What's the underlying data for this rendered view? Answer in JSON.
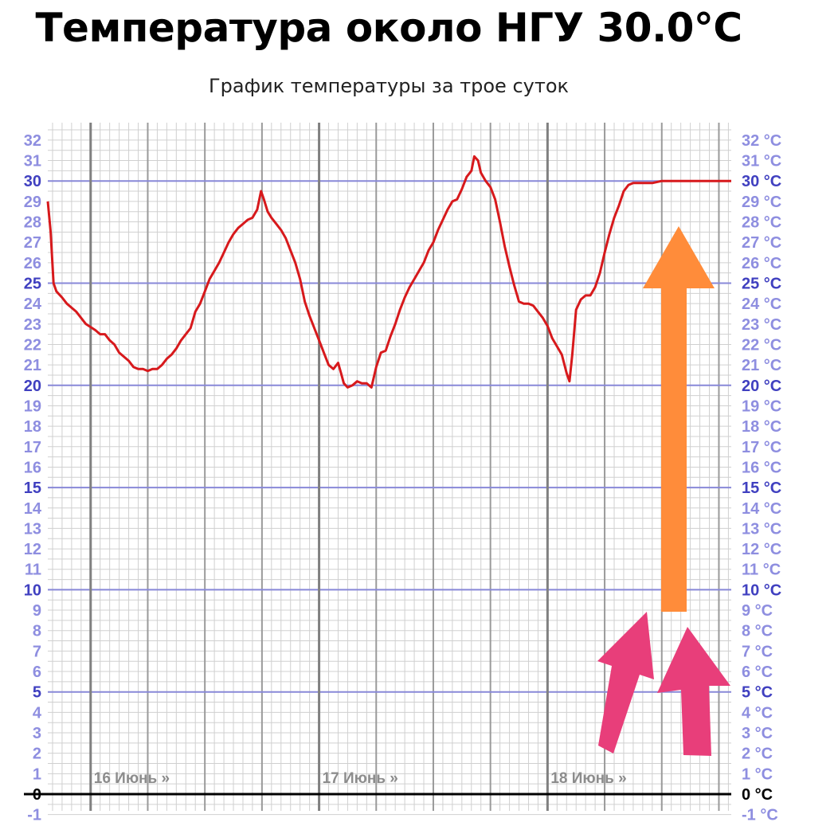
{
  "header": {
    "title": "Температура около НГУ 30.0°C",
    "subtitle": "График температуры за трое суток"
  },
  "colors": {
    "line": "#d7191c",
    "grid_minor": "#d0d0d0",
    "grid_blue": "#8888d8",
    "day_line": "#808080",
    "label_light": "#8e8ee0",
    "label_bold": "#4040c0",
    "zero": "#000000",
    "arrow_orange": "#ff8c3a",
    "arrow_pink": "#e83e7a"
  },
  "icons": [
    "orange-up-arrow-icon",
    "pink-arrow-icon"
  ],
  "chart_data": {
    "type": "line",
    "title": "",
    "xlabel": "",
    "ylabel": "",
    "ylim": [
      -1,
      32
    ],
    "y_ticks_left": [
      "-1",
      "0",
      "1",
      "2",
      "3",
      "4",
      "5",
      "6",
      "7",
      "8",
      "9",
      "10",
      "11",
      "12",
      "13",
      "14",
      "15",
      "16",
      "17",
      "18",
      "19",
      "20",
      "21",
      "22",
      "23",
      "24",
      "25",
      "26",
      "27",
      "28",
      "29",
      "30",
      "31",
      "32"
    ],
    "y_ticks_right": [
      "-1 °C",
      "0 °C",
      "1 °C",
      "2 °C",
      "3 °C",
      "4 °C",
      "5 °C",
      "6 °C",
      "7 °C",
      "8 °C",
      "9 °C",
      "10 °C",
      "11 °C",
      "12 °C",
      "13 °C",
      "14 °C",
      "15 °C",
      "16 °C",
      "17 °C",
      "18 °C",
      "19 °C",
      "20 °C",
      "21 °C",
      "22 °C",
      "23 °C",
      "24 °C",
      "25 °C",
      "26 °C",
      "27 °C",
      "28 °C",
      "29 °C",
      "30 °C",
      "31 °C",
      "32 °C"
    ],
    "x_unit": "hours",
    "xlim": [
      -4.5,
      67.3
    ],
    "day_labels": [
      {
        "label": "16 Июнь »",
        "x": 0
      },
      {
        "label": "17 Июнь »",
        "x": 24
      },
      {
        "label": "18 Июнь »",
        "x": 48
      }
    ],
    "grid": true,
    "series": [
      {
        "points": [
          [
            -4.5,
            29.0
          ],
          [
            -4.2,
            27.5
          ],
          [
            -3.9,
            25.0
          ],
          [
            -3.6,
            24.6
          ],
          [
            -3.0,
            24.3
          ],
          [
            -2.5,
            24.0
          ],
          [
            -1.5,
            23.6
          ],
          [
            -0.5,
            23.0
          ],
          [
            0.5,
            22.7
          ],
          [
            1.0,
            22.5
          ],
          [
            1.5,
            22.5
          ],
          [
            2.0,
            22.2
          ],
          [
            2.5,
            22.0
          ],
          [
            3.0,
            21.6
          ],
          [
            3.5,
            21.4
          ],
          [
            4.0,
            21.2
          ],
          [
            4.5,
            20.9
          ],
          [
            5.0,
            20.8
          ],
          [
            5.5,
            20.8
          ],
          [
            6.0,
            20.7
          ],
          [
            6.5,
            20.8
          ],
          [
            7.0,
            20.8
          ],
          [
            7.5,
            21.0
          ],
          [
            8.0,
            21.3
          ],
          [
            8.5,
            21.5
          ],
          [
            9.0,
            21.8
          ],
          [
            9.5,
            22.2
          ],
          [
            10.0,
            22.5
          ],
          [
            10.5,
            22.8
          ],
          [
            11.0,
            23.6
          ],
          [
            11.5,
            24.0
          ],
          [
            12.0,
            24.6
          ],
          [
            12.5,
            25.2
          ],
          [
            13.0,
            25.6
          ],
          [
            13.5,
            26.0
          ],
          [
            14.0,
            26.5
          ],
          [
            14.5,
            27.0
          ],
          [
            15.0,
            27.4
          ],
          [
            15.5,
            27.7
          ],
          [
            16.0,
            27.9
          ],
          [
            16.5,
            28.1
          ],
          [
            17.0,
            28.2
          ],
          [
            17.5,
            28.6
          ],
          [
            17.9,
            29.5
          ],
          [
            18.2,
            29.1
          ],
          [
            18.6,
            28.5
          ],
          [
            19.0,
            28.2
          ],
          [
            19.5,
            27.9
          ],
          [
            20.0,
            27.6
          ],
          [
            20.5,
            27.2
          ],
          [
            21.0,
            26.6
          ],
          [
            21.5,
            26.0
          ],
          [
            22.0,
            25.2
          ],
          [
            22.5,
            24.1
          ],
          [
            23.0,
            23.4
          ],
          [
            23.5,
            22.8
          ],
          [
            24.0,
            22.2
          ],
          [
            24.5,
            21.6
          ],
          [
            25.0,
            21.0
          ],
          [
            25.5,
            20.8
          ],
          [
            26.0,
            21.1
          ],
          [
            26.3,
            20.6
          ],
          [
            26.6,
            20.1
          ],
          [
            27.0,
            19.9
          ],
          [
            27.5,
            20.0
          ],
          [
            28.0,
            20.2
          ],
          [
            28.5,
            20.1
          ],
          [
            29.0,
            20.1
          ],
          [
            29.5,
            19.9
          ],
          [
            30.0,
            20.9
          ],
          [
            30.5,
            21.6
          ],
          [
            31.0,
            21.7
          ],
          [
            31.5,
            22.4
          ],
          [
            32.0,
            23.0
          ],
          [
            32.5,
            23.7
          ],
          [
            33.0,
            24.3
          ],
          [
            33.5,
            24.8
          ],
          [
            34.0,
            25.2
          ],
          [
            34.5,
            25.6
          ],
          [
            35.0,
            26.0
          ],
          [
            35.5,
            26.6
          ],
          [
            36.0,
            27.0
          ],
          [
            36.5,
            27.6
          ],
          [
            37.0,
            28.1
          ],
          [
            37.5,
            28.6
          ],
          [
            38.0,
            29.0
          ],
          [
            38.5,
            29.1
          ],
          [
            39.0,
            29.6
          ],
          [
            39.5,
            30.2
          ],
          [
            40.0,
            30.5
          ],
          [
            40.3,
            31.2
          ],
          [
            40.7,
            31.0
          ],
          [
            41.0,
            30.4
          ],
          [
            41.5,
            30.0
          ],
          [
            42.0,
            29.7
          ],
          [
            42.5,
            29.1
          ],
          [
            43.0,
            28.0
          ],
          [
            43.5,
            26.8
          ],
          [
            44.0,
            25.8
          ],
          [
            44.5,
            24.9
          ],
          [
            45.0,
            24.1
          ],
          [
            45.5,
            24.0
          ],
          [
            46.0,
            24.0
          ],
          [
            46.5,
            23.9
          ],
          [
            47.0,
            23.6
          ],
          [
            47.5,
            23.3
          ],
          [
            48.0,
            22.9
          ],
          [
            48.5,
            22.3
          ],
          [
            49.0,
            21.9
          ],
          [
            49.5,
            21.5
          ],
          [
            50.0,
            20.6
          ],
          [
            50.3,
            20.2
          ],
          [
            50.6,
            21.5
          ],
          [
            51.0,
            23.7
          ],
          [
            51.5,
            24.2
          ],
          [
            52.0,
            24.4
          ],
          [
            52.5,
            24.4
          ],
          [
            53.0,
            24.8
          ],
          [
            53.5,
            25.5
          ],
          [
            54.0,
            26.5
          ],
          [
            54.5,
            27.4
          ],
          [
            55.0,
            28.2
          ],
          [
            55.5,
            28.8
          ],
          [
            56.0,
            29.5
          ],
          [
            56.5,
            29.8
          ],
          [
            57.0,
            29.9
          ],
          [
            58.0,
            29.9
          ],
          [
            59.0,
            29.9
          ],
          [
            60.0,
            30.0
          ],
          [
            61.0,
            30.0
          ],
          [
            62.0,
            30.0
          ],
          [
            63.0,
            30.0
          ],
          [
            64.0,
            30.0
          ],
          [
            65.0,
            30.0
          ],
          [
            67.3,
            30.0
          ]
        ]
      }
    ]
  }
}
